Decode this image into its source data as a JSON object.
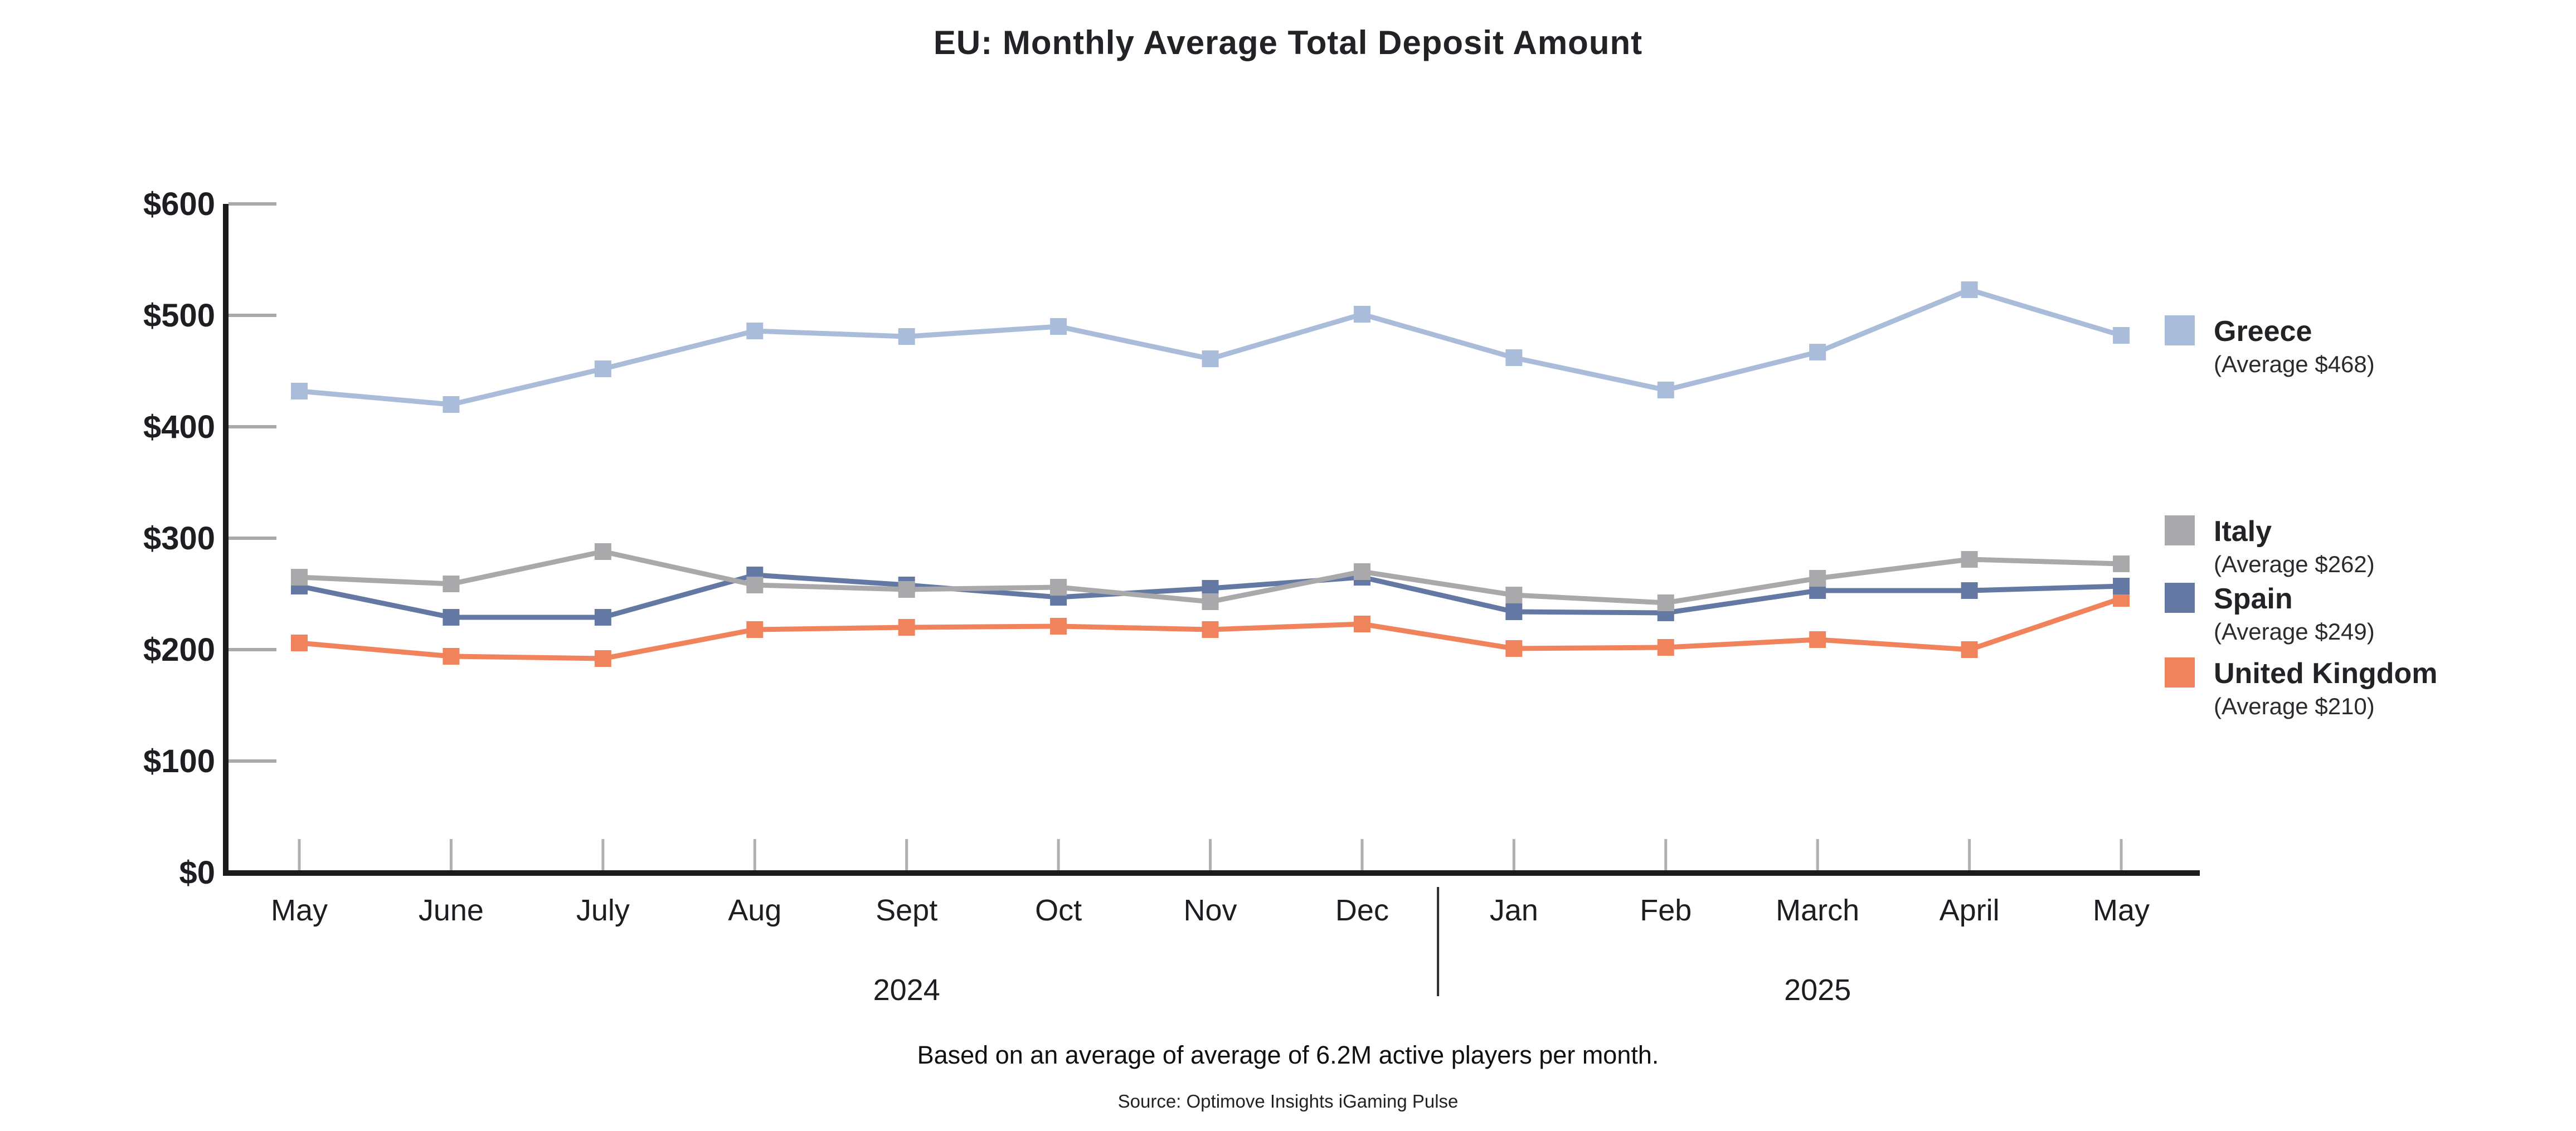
{
  "page": {
    "background": "#FFFFFF"
  },
  "footer": {
    "note": "Based on an average of average of 6.2M active players per month.",
    "source": "Source: Optimove Insights iGaming Pulse"
  },
  "chart_data": {
    "type": "line",
    "title": "EU: Monthly Average Total Deposit Amount",
    "x_categories": [
      "May",
      "June",
      "July",
      "Aug",
      "Sept",
      "Oct",
      "Nov",
      "Dec",
      "Jan",
      "Feb",
      "March",
      "April",
      "May"
    ],
    "year_labels": [
      {
        "text": "2024",
        "x_index": 4
      },
      {
        "text": "2025",
        "x_index": 10
      }
    ],
    "year_divider_after_index": 7,
    "ylim": [
      0,
      600
    ],
    "y_ticks": [
      {
        "value": 600,
        "label": "$600"
      },
      {
        "value": 500,
        "label": "$500"
      },
      {
        "value": 400,
        "label": "$400"
      },
      {
        "value": 300,
        "label": "$300"
      },
      {
        "value": 200,
        "label": "$200"
      },
      {
        "value": 100,
        "label": "$100"
      },
      {
        "value": 0,
        "label": "$0"
      }
    ],
    "grid": "tick-stubs-only",
    "legend_position": "right",
    "draw_order": [
      0,
      3,
      2,
      1
    ],
    "axis_color": "#1b1b1e",
    "tick_color": "#a8a8a8",
    "month_tick_color": "#b0b0b0",
    "divider_color": "#2b2b2e",
    "text_color": "#1d1d22",
    "series": [
      {
        "name": "Greece",
        "avg_label": "(Average $468)",
        "color": "#a9bcd9",
        "values": [
          432,
          420,
          452,
          486,
          481,
          490,
          461,
          501,
          462,
          433,
          467,
          523,
          482
        ]
      },
      {
        "name": "Italy",
        "avg_label": "(Average $262)",
        "color": "#a9a9ab",
        "values": [
          265,
          259,
          288,
          258,
          254,
          256,
          243,
          270,
          249,
          242,
          264,
          281,
          277
        ]
      },
      {
        "name": "Spain",
        "avg_label": "(Average $249)",
        "color": "#6478a4",
        "values": [
          257,
          229,
          229,
          267,
          258,
          247,
          255,
          265,
          234,
          233,
          253,
          253,
          257
        ]
      },
      {
        "name": "United Kingdom",
        "avg_label": "(Average $210)",
        "color": "#f0825c",
        "values": [
          206,
          194,
          192,
          218,
          220,
          221,
          218,
          223,
          201,
          202,
          209,
          200,
          246
        ]
      }
    ]
  }
}
